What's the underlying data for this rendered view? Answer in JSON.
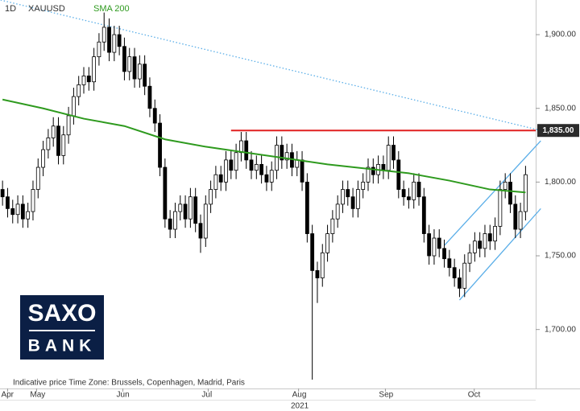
{
  "chart_data": {
    "type": "candlestick",
    "title": "XAUUSD",
    "interval": "1D",
    "footnote": "Indicative price    Time Zone: Brussels, Copenhagen, Madrid, Paris",
    "year_label": "2021",
    "watermark": [
      "SAXO",
      "BANK"
    ],
    "colors": {
      "up": "#ffffff",
      "down": "#000000",
      "outline": "#000000"
    },
    "open": [
      1795,
      1790,
      1782,
      1778,
      1785,
      1775,
      1780,
      1795,
      1810,
      1822,
      1830,
      1838,
      1818,
      1832,
      1845,
      1858,
      1866,
      1872,
      1868,
      1885,
      1895,
      1905,
      1888,
      1900,
      1892,
      1875,
      1885,
      1870,
      1880,
      1865,
      1850,
      1840,
      1810,
      1775,
      1768,
      1780,
      1785,
      1775,
      1790,
      1772,
      1762,
      1785,
      1795,
      1805,
      1800,
      1815,
      1808,
      1820,
      1828,
      1815,
      1808,
      1812,
      1805,
      1800,
      1808,
      1825,
      1815,
      1820,
      1810,
      1815,
      1800,
      1765,
      1740,
      1735,
      1752,
      1765,
      1775,
      1785,
      1795,
      1790,
      1782,
      1795,
      1800,
      1810,
      1805,
      1812,
      1808,
      1825,
      1815,
      1795,
      1790,
      1788,
      1800,
      1790,
      1765,
      1750,
      1762,
      1755,
      1748,
      1742,
      1735,
      1728,
      1745,
      1752,
      1760,
      1755,
      1765,
      1760,
      1770,
      1795,
      1800,
      1785,
      1768,
      1780
    ],
    "high": [
      1801,
      1796,
      1788,
      1791,
      1791,
      1786,
      1801,
      1816,
      1828,
      1836,
      1844,
      1844,
      1838,
      1851,
      1864,
      1872,
      1878,
      1878,
      1891,
      1901,
      1915,
      1911,
      1906,
      1906,
      1898,
      1891,
      1891,
      1886,
      1886,
      1871,
      1856,
      1846,
      1816,
      1781,
      1786,
      1791,
      1791,
      1796,
      1796,
      1778,
      1791,
      1801,
      1811,
      1811,
      1821,
      1821,
      1826,
      1834,
      1834,
      1821,
      1818,
      1818,
      1811,
      1814,
      1831,
      1831,
      1826,
      1826,
      1821,
      1821,
      1806,
      1771,
      1746,
      1758,
      1771,
      1781,
      1791,
      1801,
      1801,
      1796,
      1801,
      1806,
      1816,
      1816,
      1818,
      1818,
      1831,
      1831,
      1821,
      1801,
      1796,
      1806,
      1806,
      1796,
      1771,
      1768,
      1768,
      1761,
      1754,
      1748,
      1741,
      1751,
      1758,
      1766,
      1766,
      1771,
      1771,
      1776,
      1801,
      1806,
      1806,
      1791,
      1786,
      1811
    ],
    "low": [
      1784,
      1776,
      1772,
      1772,
      1769,
      1769,
      1774,
      1789,
      1804,
      1816,
      1824,
      1812,
      1812,
      1826,
      1839,
      1852,
      1860,
      1862,
      1862,
      1879,
      1889,
      1882,
      1882,
      1886,
      1869,
      1869,
      1864,
      1864,
      1859,
      1844,
      1834,
      1804,
      1769,
      1762,
      1762,
      1774,
      1769,
      1769,
      1766,
      1752,
      1756,
      1779,
      1789,
      1794,
      1794,
      1802,
      1802,
      1814,
      1809,
      1802,
      1802,
      1799,
      1794,
      1794,
      1802,
      1809,
      1809,
      1804,
      1804,
      1794,
      1759,
      1666,
      1718,
      1729,
      1746,
      1759,
      1769,
      1779,
      1784,
      1776,
      1776,
      1789,
      1794,
      1799,
      1799,
      1802,
      1802,
      1809,
      1789,
      1784,
      1782,
      1782,
      1784,
      1759,
      1744,
      1744,
      1749,
      1742,
      1736,
      1729,
      1722,
      1722,
      1739,
      1746,
      1749,
      1749,
      1754,
      1754,
      1764,
      1789,
      1779,
      1762,
      1762,
      1774
    ],
    "close": [
      1790,
      1782,
      1778,
      1785,
      1775,
      1780,
      1795,
      1810,
      1822,
      1830,
      1838,
      1818,
      1832,
      1845,
      1858,
      1866,
      1872,
      1868,
      1885,
      1895,
      1905,
      1888,
      1900,
      1892,
      1875,
      1885,
      1870,
      1880,
      1865,
      1850,
      1840,
      1810,
      1775,
      1768,
      1780,
      1785,
      1775,
      1790,
      1772,
      1762,
      1785,
      1795,
      1805,
      1800,
      1815,
      1808,
      1820,
      1828,
      1815,
      1808,
      1812,
      1805,
      1800,
      1808,
      1825,
      1815,
      1820,
      1810,
      1815,
      1800,
      1765,
      1740,
      1735,
      1752,
      1765,
      1775,
      1785,
      1795,
      1790,
      1782,
      1795,
      1800,
      1810,
      1805,
      1812,
      1808,
      1825,
      1815,
      1795,
      1790,
      1788,
      1800,
      1790,
      1765,
      1750,
      1762,
      1755,
      1748,
      1742,
      1735,
      1728,
      1745,
      1752,
      1760,
      1755,
      1765,
      1760,
      1770,
      1795,
      1800,
      1785,
      1768,
      1780,
      1805
    ],
    "sma": {
      "name": "SMA 200",
      "color": "#2e9a1e",
      "x": [
        0,
        8,
        16,
        24,
        32,
        40,
        48,
        56,
        64,
        72,
        80,
        88,
        96,
        103
      ],
      "values": [
        1856,
        1850,
        1843,
        1838,
        1829,
        1824,
        1820,
        1816,
        1812,
        1809,
        1806,
        1801,
        1795,
        1793
      ]
    },
    "level": {
      "value": 1835,
      "label": "1,835.00",
      "color": "#e02020",
      "x": [
        45,
        106
      ]
    },
    "trendlines": [
      {
        "color": "#5aaee8",
        "dotted": true,
        "x": [
          -1,
          106
        ],
        "values": [
          1924,
          1835
        ]
      },
      {
        "color": "#5aaee8",
        "dotted": false,
        "x": [
          90,
          106
        ],
        "values": [
          1720,
          1782
        ]
      },
      {
        "color": "#5aaee8",
        "dotted": false,
        "x": [
          87,
          106
        ],
        "values": [
          1757,
          1828
        ]
      }
    ],
    "xlim": [
      -0.5,
      105
    ],
    "xticks": [
      {
        "value": 1,
        "label": "Apr"
      },
      {
        "value": 6.7,
        "label": "May"
      },
      {
        "value": 23.7,
        "label": "Jun"
      },
      {
        "value": 40.5,
        "label": "Jul"
      },
      {
        "value": 58.3,
        "label": "Aug"
      },
      {
        "value": 75.4,
        "label": "Sep"
      },
      {
        "value": 92.9,
        "label": "Oct"
      }
    ],
    "ylim": [
      1660,
      1923.5
    ],
    "yticks": [
      {
        "value": 1700,
        "label": "1,700.00"
      },
      {
        "value": 1750,
        "label": "1,750.00"
      },
      {
        "value": 1800,
        "label": "1,800.00"
      },
      {
        "value": 1850,
        "label": "1,850.00"
      },
      {
        "value": 1900,
        "label": "1,900.00"
      }
    ]
  }
}
